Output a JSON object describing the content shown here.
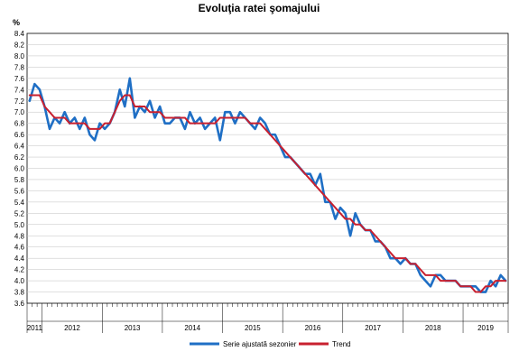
{
  "chart_data": {
    "type": "line",
    "title": "Evoluţia ratei şomajului",
    "ylabel": "%",
    "xlabel": "",
    "ylim": [
      3.6,
      8.4
    ],
    "y_ticks": [
      "3.6",
      "3.8",
      "4.0",
      "4.2",
      "4.4",
      "4.6",
      "4.8",
      "5.0",
      "5.2",
      "5.4",
      "5.6",
      "5.8",
      "6.0",
      "6.2",
      "6.4",
      "6.6",
      "6.8",
      "7.0",
      "7.2",
      "7.4",
      "7.6",
      "7.8",
      "8.0",
      "8.2",
      "8.4"
    ],
    "grid": "horizontal",
    "legend_position": "bottom",
    "x_start": "2011-10",
    "year_labels": [
      "2011",
      "2012",
      "2013",
      "2014",
      "2015",
      "2016",
      "2017",
      "2018",
      "2019"
    ],
    "series": [
      {
        "name": "Serie ajustată sezonier",
        "color": "#1f6fc5",
        "values": [
          7.2,
          7.5,
          7.4,
          7.1,
          6.7,
          6.9,
          6.8,
          7.0,
          6.8,
          6.9,
          6.7,
          6.9,
          6.6,
          6.5,
          6.8,
          6.7,
          6.8,
          7.0,
          7.4,
          7.1,
          7.6,
          6.9,
          7.1,
          7.0,
          7.2,
          6.9,
          7.1,
          6.8,
          6.8,
          6.9,
          6.9,
          6.7,
          7.0,
          6.8,
          6.9,
          6.7,
          6.8,
          6.9,
          6.5,
          7.0,
          7.0,
          6.8,
          7.0,
          6.9,
          6.8,
          6.7,
          6.9,
          6.8,
          6.6,
          6.6,
          6.4,
          6.2,
          6.2,
          6.1,
          6.0,
          5.9,
          5.9,
          5.7,
          5.9,
          5.4,
          5.4,
          5.1,
          5.3,
          5.2,
          4.8,
          5.2,
          5.0,
          4.9,
          4.9,
          4.7,
          4.7,
          4.6,
          4.4,
          4.4,
          4.3,
          4.4,
          4.3,
          4.3,
          4.1,
          4.0,
          3.9,
          4.1,
          4.1,
          4.0,
          4.0,
          4.0,
          3.9,
          3.9,
          3.9,
          3.9,
          3.8,
          3.8,
          4.0,
          3.9,
          4.1,
          4.0
        ]
      },
      {
        "name": "Trend",
        "color": "#c8202f",
        "values": [
          7.3,
          7.3,
          7.3,
          7.1,
          7.0,
          6.9,
          6.9,
          6.9,
          6.8,
          6.8,
          6.8,
          6.8,
          6.7,
          6.7,
          6.7,
          6.8,
          6.8,
          7.0,
          7.2,
          7.3,
          7.3,
          7.1,
          7.1,
          7.1,
          7.0,
          7.0,
          7.0,
          6.9,
          6.9,
          6.9,
          6.9,
          6.9,
          6.8,
          6.8,
          6.8,
          6.8,
          6.8,
          6.8,
          6.9,
          6.9,
          6.9,
          6.9,
          6.9,
          6.9,
          6.8,
          6.8,
          6.8,
          6.7,
          6.6,
          6.5,
          6.4,
          6.3,
          6.2,
          6.1,
          6.0,
          5.9,
          5.8,
          5.7,
          5.6,
          5.5,
          5.4,
          5.3,
          5.2,
          5.1,
          5.1,
          5.0,
          5.0,
          4.9,
          4.9,
          4.8,
          4.7,
          4.6,
          4.5,
          4.4,
          4.4,
          4.4,
          4.3,
          4.3,
          4.2,
          4.1,
          4.1,
          4.1,
          4.0,
          4.0,
          4.0,
          4.0,
          3.9,
          3.9,
          3.9,
          3.8,
          3.8,
          3.9,
          3.9,
          4.0,
          4.0,
          4.0
        ]
      }
    ]
  }
}
